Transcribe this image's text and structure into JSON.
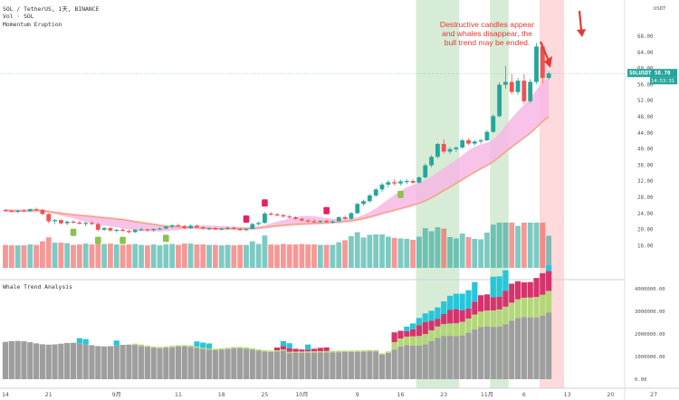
{
  "header": {
    "symbol_line": "SOL / TetherUS, 1天, BINANCE",
    "vol_line": "Vol · SOL",
    "indicator_line": "Momentum Eruption",
    "currency": "USDT"
  },
  "lower_pane": {
    "title": "Whale Trend Analysis"
  },
  "annotation": "Destructive candles appear and whales disappear, the bull trend may be ended.",
  "price_tag": {
    "symbol": "SOLUSDT",
    "price": "58.70",
    "countdown": "14:53:31"
  },
  "colors": {
    "up": "#26a69a",
    "down": "#ef5350",
    "ma": "#f0a04b",
    "cloud": "#f8b4e4",
    "green_zone": "#c8e6c9",
    "red_zone": "#ffcdd2",
    "whale_gray": "#9e9e9e",
    "whale_green": "#b4d67a",
    "whale_red": "#d6336c",
    "whale_cyan": "#26c6da",
    "arrow": "#e53935"
  },
  "chart_data": [
    {
      "type": "candlestick",
      "title": "SOL / TetherUS, 1天, BINANCE",
      "y_axis_ticks": [
        "68.00",
        "64.00",
        "60.00",
        "56.00",
        "52.00",
        "48.00",
        "44.00",
        "40.00",
        "36.00",
        "32.00",
        "28.00",
        "24.00",
        "20.00",
        "16.00"
      ],
      "y_axis_values": [
        68,
        64,
        60,
        56,
        52,
        48,
        44,
        40,
        36,
        32,
        28,
        24,
        20,
        16
      ],
      "x_axis_ticks": [
        "14",
        "21",
        "9月",
        "11",
        "18",
        "25",
        "10月",
        "9",
        "16",
        "23",
        "11月",
        "6",
        "13",
        "20",
        "27"
      ],
      "x_axis_values": [
        0,
        7,
        18,
        28,
        35,
        42,
        48,
        57,
        64,
        71,
        78,
        84,
        91,
        98,
        105
      ],
      "ylim": [
        12,
        72
      ],
      "candles_ohlc": [
        [
          24.8,
          25.1,
          24.3,
          24.6
        ],
        [
          24.6,
          24.9,
          24.2,
          24.4
        ],
        [
          24.4,
          24.8,
          24.1,
          24.7
        ],
        [
          24.7,
          25.0,
          24.3,
          24.5
        ],
        [
          24.5,
          25.2,
          24.3,
          25.0
        ],
        [
          25.0,
          25.4,
          24.6,
          24.8
        ],
        [
          24.8,
          25.1,
          23.5,
          23.8
        ],
        [
          23.8,
          24.0,
          21.5,
          22.0
        ],
        [
          22.0,
          22.6,
          21.3,
          22.3
        ],
        [
          22.3,
          22.5,
          21.2,
          21.5
        ],
        [
          21.5,
          22.2,
          21.0,
          21.9
        ],
        [
          21.9,
          22.3,
          21.5,
          21.7
        ],
        [
          21.7,
          22.1,
          21.2,
          21.4
        ],
        [
          21.4,
          21.9,
          20.8,
          21.6
        ],
        [
          21.6,
          22.0,
          21.1,
          21.3
        ],
        [
          21.3,
          21.7,
          19.5,
          19.9
        ],
        [
          19.9,
          20.6,
          19.6,
          20.3
        ],
        [
          20.3,
          20.5,
          19.4,
          19.7
        ],
        [
          19.7,
          20.1,
          19.2,
          19.9
        ],
        [
          19.9,
          20.3,
          19.5,
          19.6
        ],
        [
          19.6,
          19.9,
          19.0,
          19.3
        ],
        [
          19.3,
          20.1,
          19.1,
          19.9
        ],
        [
          19.9,
          20.4,
          19.6,
          20.0
        ],
        [
          20.0,
          20.2,
          19.5,
          19.8
        ],
        [
          19.8,
          20.3,
          19.4,
          20.1
        ],
        [
          20.1,
          20.5,
          19.8,
          20.2
        ],
        [
          20.2,
          20.9,
          20.0,
          20.7
        ],
        [
          20.7,
          21.3,
          20.3,
          21.0
        ],
        [
          21.0,
          21.4,
          20.6,
          20.8
        ],
        [
          20.8,
          21.1,
          20.0,
          20.3
        ],
        [
          20.3,
          21.2,
          20.1,
          20.9
        ],
        [
          20.9,
          21.2,
          20.3,
          20.5
        ],
        [
          20.5,
          20.8,
          19.9,
          20.2
        ],
        [
          20.2,
          20.5,
          19.7,
          20.3
        ],
        [
          20.3,
          20.6,
          19.8,
          20.0
        ],
        [
          20.0,
          20.4,
          19.7,
          20.2
        ],
        [
          20.2,
          20.7,
          19.9,
          20.4
        ],
        [
          20.4,
          20.6,
          19.9,
          20.1
        ],
        [
          20.1,
          20.4,
          19.6,
          19.8
        ],
        [
          19.8,
          20.3,
          19.5,
          20.1
        ],
        [
          20.1,
          21.6,
          20.0,
          21.3
        ],
        [
          21.3,
          21.9,
          20.9,
          21.6
        ],
        [
          21.6,
          24.3,
          21.4,
          23.9
        ],
        [
          23.9,
          24.3,
          23.4,
          23.7
        ],
        [
          23.7,
          24.1,
          23.3,
          23.5
        ],
        [
          23.5,
          23.9,
          22.9,
          23.2
        ],
        [
          23.2,
          23.6,
          22.7,
          23.0
        ],
        [
          23.0,
          23.3,
          22.4,
          22.6
        ],
        [
          22.6,
          22.9,
          21.9,
          22.2
        ],
        [
          22.2,
          22.6,
          21.7,
          22.0
        ],
        [
          22.0,
          22.5,
          21.6,
          21.9
        ],
        [
          21.9,
          22.3,
          21.5,
          22.1
        ],
        [
          22.1,
          22.4,
          21.6,
          21.8
        ],
        [
          21.8,
          22.2,
          21.4,
          22.0
        ],
        [
          22.0,
          23.3,
          21.9,
          23.0
        ],
        [
          23.0,
          23.4,
          22.4,
          22.6
        ],
        [
          22.6,
          24.3,
          22.4,
          24.0
        ],
        [
          24.0,
          26.6,
          23.8,
          26.3
        ],
        [
          26.3,
          27.4,
          25.8,
          27.0
        ],
        [
          27.0,
          28.8,
          26.6,
          28.4
        ],
        [
          28.4,
          30.3,
          28.0,
          29.9
        ],
        [
          29.9,
          31.6,
          29.3,
          31.1
        ],
        [
          31.1,
          32.2,
          30.4,
          31.7
        ],
        [
          31.7,
          32.4,
          30.9,
          31.4
        ],
        [
          31.4,
          32.3,
          30.9,
          31.9
        ],
        [
          31.9,
          32.5,
          31.2,
          32.0
        ],
        [
          32.0,
          32.4,
          31.3,
          31.6
        ],
        [
          31.6,
          33.2,
          31.4,
          32.9
        ],
        [
          32.9,
          36.3,
          32.6,
          35.9
        ],
        [
          35.9,
          38.4,
          35.4,
          38.0
        ],
        [
          38.0,
          41.5,
          37.6,
          41.2
        ],
        [
          41.2,
          42.4,
          38.8,
          39.3
        ],
        [
          39.3,
          40.4,
          38.7,
          39.9
        ],
        [
          39.9,
          40.6,
          39.2,
          40.3
        ],
        [
          40.3,
          42.5,
          40.0,
          42.1
        ],
        [
          42.1,
          42.6,
          40.9,
          41.3
        ],
        [
          41.3,
          42.1,
          40.8,
          41.8
        ],
        [
          41.8,
          42.5,
          41.3,
          42.1
        ],
        [
          42.1,
          44.6,
          41.9,
          44.2
        ],
        [
          44.2,
          48.5,
          44.0,
          48.1
        ],
        [
          48.1,
          56.5,
          47.8,
          55.9
        ],
        [
          55.9,
          60.6,
          54.9,
          56.6
        ],
        [
          56.6,
          58.6,
          53.5,
          54.1
        ],
        [
          54.1,
          57.6,
          53.4,
          56.9
        ],
        [
          56.9,
          58.5,
          51.2,
          51.8
        ],
        [
          51.8,
          57.3,
          51.3,
          56.6
        ],
        [
          56.6,
          66.3,
          56.1,
          65.4
        ],
        [
          65.4,
          66.0,
          56.3,
          57.6
        ],
        [
          57.6,
          59.2,
          57.2,
          58.7
        ]
      ]
    },
    {
      "type": "bar",
      "title": "Vol · SOL"
    },
    {
      "type": "stacked-bar",
      "title": "Whale Trend Analysis",
      "y_axis_ticks": [
        "4000000.00",
        "3000000.00",
        "2000000.00",
        "1000000.00",
        "0.00"
      ],
      "y_axis_values": [
        4000000,
        3000000,
        2000000,
        1000000,
        0
      ]
    }
  ]
}
